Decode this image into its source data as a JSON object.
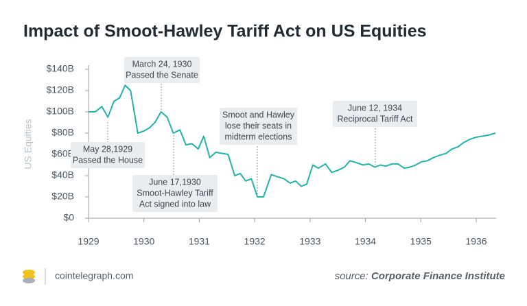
{
  "chart_data": {
    "type": "line",
    "title": "Impact of Smoot-Hawley Tariff Act on US Equities",
    "y_label": "US Equities",
    "x": [
      1929.0,
      1929.12,
      1929.24,
      1929.35,
      1929.46,
      1929.56,
      1929.66,
      1929.76,
      1929.89,
      1930.0,
      1930.1,
      1930.2,
      1930.31,
      1930.42,
      1930.53,
      1930.65,
      1930.76,
      1930.87,
      1930.98,
      1931.08,
      1931.19,
      1931.3,
      1931.4,
      1931.52,
      1931.64,
      1931.74,
      1931.84,
      1931.94,
      1932.05,
      1932.16,
      1932.3,
      1932.41,
      1932.53,
      1932.64,
      1932.74,
      1932.84,
      1932.94,
      1933.05,
      1933.15,
      1933.28,
      1933.39,
      1933.5,
      1933.62,
      1933.72,
      1933.85,
      1933.96,
      1934.06,
      1934.17,
      1934.27,
      1934.37,
      1934.48,
      1934.59,
      1934.7,
      1934.8,
      1934.91,
      1935.01,
      1935.12,
      1935.23,
      1935.33,
      1935.46,
      1935.56,
      1935.67,
      1935.77,
      1935.88,
      1935.99,
      1936.1,
      1936.21,
      1936.35
    ],
    "series": [
      {
        "color": "#22b3a5",
        "values": [
          100,
          100,
          105,
          95,
          110,
          113,
          125,
          120,
          80,
          82,
          85,
          90,
          100,
          95,
          80,
          83,
          69,
          70,
          65,
          77,
          57,
          62,
          61,
          60,
          40,
          42,
          35,
          37,
          20,
          20,
          41,
          39,
          37,
          33,
          35,
          30,
          32,
          50,
          47,
          51,
          43,
          45,
          48,
          54,
          52,
          50,
          51,
          48,
          50,
          49,
          51,
          51,
          47,
          48,
          50,
          53,
          54,
          57,
          59,
          61,
          65,
          67,
          71,
          74,
          76,
          77,
          78,
          80
        ]
      }
    ],
    "xlim": [
      1929,
      1936.36
    ],
    "xticks": [
      1929,
      1930,
      1931,
      1932,
      1933,
      1934,
      1935,
      1936
    ],
    "ylim": [
      0,
      140
    ],
    "yticks": [
      {
        "value": 0,
        "label": "$0"
      },
      {
        "value": 20,
        "label": "$20B"
      },
      {
        "value": 40,
        "label": "$40B"
      },
      {
        "value": 60,
        "label": "$60B"
      },
      {
        "value": 80,
        "label": "$80B"
      },
      {
        "value": 100,
        "label": "$100B"
      },
      {
        "value": 120,
        "label": "$120B"
      },
      {
        "value": 140,
        "label": "$140B"
      }
    ],
    "annotations": [
      {
        "lines": [
          "May 28,1929",
          "Passed the House"
        ]
      },
      {
        "lines": [
          "March 24, 1930",
          "Passed the Senate"
        ]
      },
      {
        "lines": [
          "June 17,1930",
          "Smoot-Hawley Tariff",
          "Act signed into law"
        ]
      },
      {
        "lines": [
          "Smoot and Hawley",
          "lose their seats in",
          "midterm elections"
        ]
      },
      {
        "lines": [
          "June 12, 1934",
          "Reciprocal Tariff Act"
        ]
      }
    ]
  },
  "footer": {
    "site": "cointelegraph.com",
    "source_prefix": "source:",
    "source": "Corporate Finance Institute"
  }
}
